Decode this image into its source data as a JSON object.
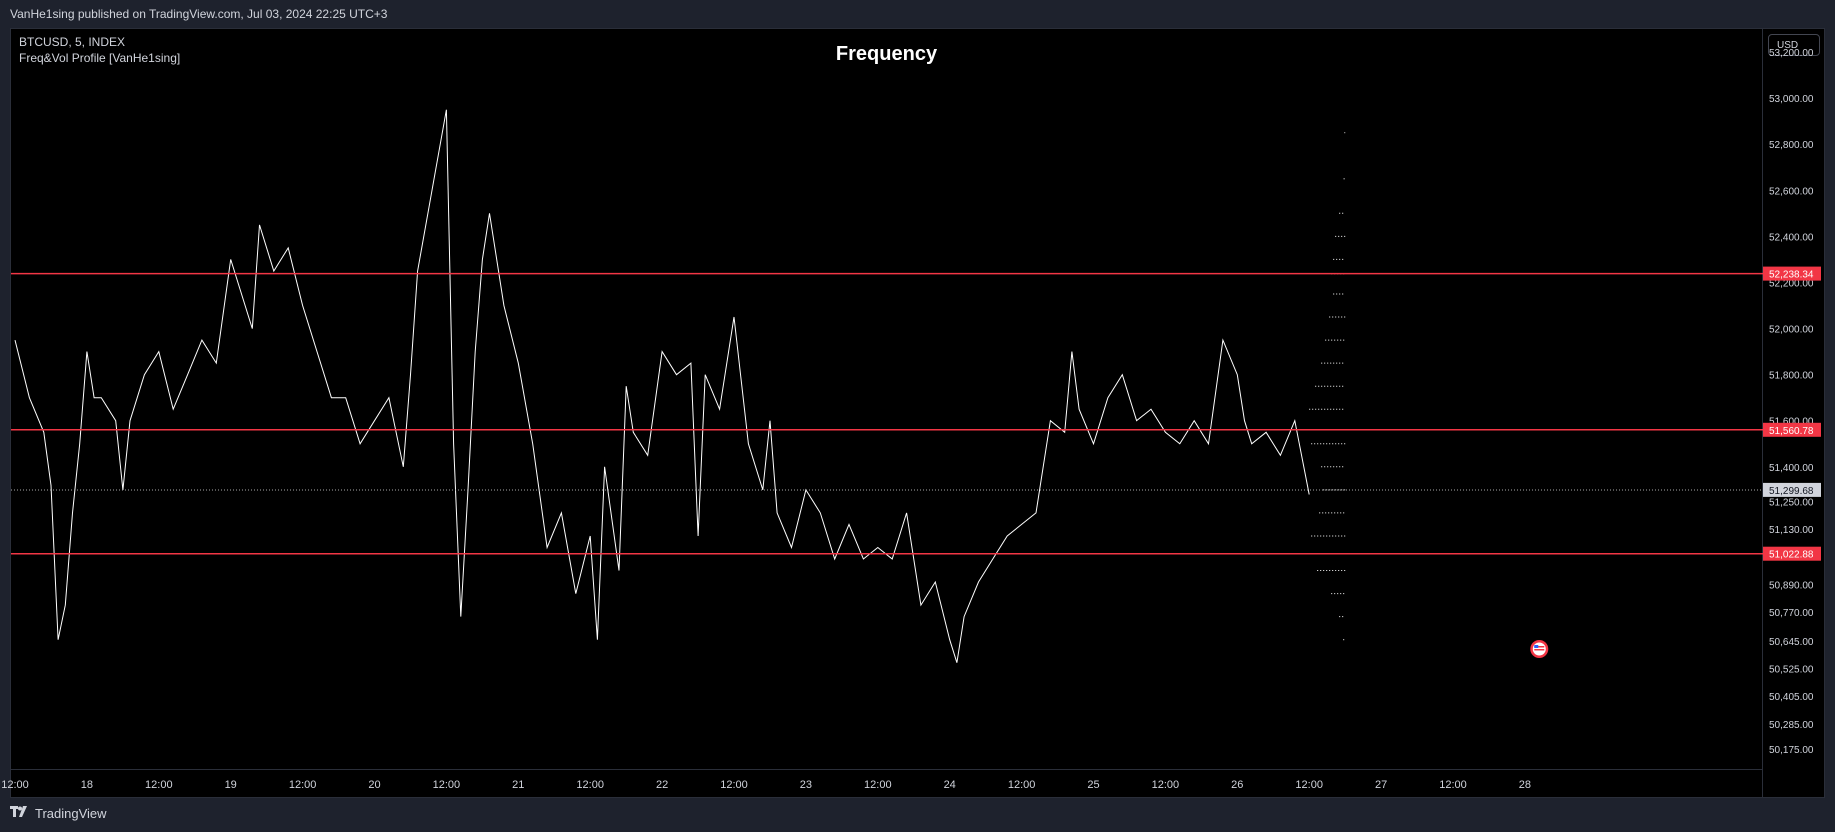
{
  "header": {
    "published": "VanHe1sing published on TradingView.com, Jul 03, 2024 22:25 UTC+3"
  },
  "legend": {
    "symbol": "BTCUSD, 5, INDEX",
    "indicator": "Freq&Vol Profile [VanHe1sing]"
  },
  "price_axis": {
    "currency": "USD"
  },
  "footer": {
    "brand": "TradingView"
  },
  "icons": {
    "event_flag": "us-flag-icon",
    "logo": "tradingview-logo-icon"
  },
  "colors": {
    "background": "#000000",
    "price_line": "#ffffff",
    "level_line": "#f23645",
    "label_text": "#ffffff"
  },
  "chart_data": {
    "type": "line",
    "title": "Frequency",
    "ylim": [
      50080,
      53300
    ],
    "y_ticks": [
      {
        "value": 53200,
        "label": "53,200.00"
      },
      {
        "value": 53000,
        "label": "53,000.00"
      },
      {
        "value": 52800,
        "label": "52,800.00"
      },
      {
        "value": 52600,
        "label": "52,600.00"
      },
      {
        "value": 52400,
        "label": "52,400.00"
      },
      {
        "value": 52200,
        "label": "52,200.00"
      },
      {
        "value": 52000,
        "label": "52,000.00"
      },
      {
        "value": 51800,
        "label": "51,800.00"
      },
      {
        "value": 51600,
        "label": "51,600.00"
      },
      {
        "value": 51400,
        "label": "51,400.00"
      },
      {
        "value": 51250,
        "label": "51,250.00"
      },
      {
        "value": 51130,
        "label": "51,130.00"
      },
      {
        "value": 50890,
        "label": "50,890.00"
      },
      {
        "value": 50770,
        "label": "50,770.00"
      },
      {
        "value": 50645,
        "label": "50,645.00"
      },
      {
        "value": 50525,
        "label": "50,525.00"
      },
      {
        "value": 50405,
        "label": "50,405.00"
      },
      {
        "value": 50285,
        "label": "50,285.00"
      },
      {
        "value": 50175,
        "label": "50,175.00"
      }
    ],
    "x_ticks": [
      "12:00",
      "18",
      "12:00",
      "19",
      "12:00",
      "20",
      "12:00",
      "21",
      "12:00",
      "22",
      "12:00",
      "23",
      "12:00",
      "24",
      "12:00",
      "25",
      "12:00",
      "26",
      "12:00",
      "27",
      "12:00",
      "28"
    ],
    "x_tick_days": [
      0,
      0.5,
      1,
      1.5,
      2,
      2.5,
      3,
      3.5,
      4,
      4.5,
      5,
      5.5,
      6,
      6.5,
      7,
      7.5,
      8,
      8.5,
      9,
      9.5,
      10,
      10.5
    ],
    "xlim": [
      0,
      12.12
    ],
    "levels": [
      {
        "value": 52238.34,
        "label": "52,238.34"
      },
      {
        "value": 51560.78,
        "label": "51,560.78"
      },
      {
        "value": 51022.88,
        "label": "51,022.88"
      }
    ],
    "last_price": {
      "value": 51299.68,
      "label": "51,299.68"
    },
    "series": [
      {
        "x": [
          0,
          0.1,
          0.2,
          0.25,
          0.3,
          0.35,
          0.4,
          0.45,
          0.5,
          0.55,
          0.6,
          0.7,
          0.75,
          0.8,
          0.9,
          1,
          1.1,
          1.2,
          1.3,
          1.4,
          1.5,
          1.6,
          1.65,
          1.7,
          1.8,
          1.9,
          2,
          2.1,
          2.2,
          2.3,
          2.4,
          2.5,
          2.6,
          2.7,
          2.75,
          2.8,
          2.9,
          3,
          3.05,
          3.1,
          3.15,
          3.2,
          3.25,
          3.3,
          3.4,
          3.5,
          3.6,
          3.7,
          3.8,
          3.9,
          4,
          4.05,
          4.1,
          4.2,
          4.25,
          4.3,
          4.4,
          4.5,
          4.6,
          4.7,
          4.75,
          4.8,
          4.9,
          5,
          5.1,
          5.2,
          5.25,
          5.3,
          5.4,
          5.5,
          5.6,
          5.7,
          5.8,
          5.9,
          6,
          6.1,
          6.2,
          6.3,
          6.4,
          6.5,
          6.55,
          6.6,
          6.7,
          6.8,
          6.9,
          7,
          7.1,
          7.2,
          7.3,
          7.35,
          7.4,
          7.5,
          7.6,
          7.7,
          7.8,
          7.9,
          8,
          8.1,
          8.2,
          8.3,
          8.4,
          8.5,
          8.55,
          8.6,
          8.7,
          8.8,
          8.9,
          9.0
        ],
        "y": [
          51950,
          51700,
          51550,
          51320,
          50650,
          50800,
          51200,
          51500,
          51900,
          51700,
          51700,
          51600,
          51300,
          51600,
          51800,
          51900,
          51650,
          51800,
          51950,
          51850,
          52300,
          52100,
          52000,
          52450,
          52250,
          52350,
          52100,
          51900,
          51700,
          51700,
          51500,
          51600,
          51700,
          51400,
          51800,
          52250,
          52600,
          52950,
          51500,
          50750,
          51300,
          51900,
          52300,
          52500,
          52100,
          51850,
          51500,
          51050,
          51200,
          50850,
          51100,
          50650,
          51400,
          50950,
          51750,
          51550,
          51450,
          51900,
          51800,
          51850,
          51100,
          51800,
          51650,
          52050,
          51500,
          51300,
          51600,
          51200,
          51050,
          51300,
          51200,
          51000,
          51150,
          51000,
          51050,
          51000,
          51200,
          50800,
          50900,
          50650,
          50550,
          50750,
          50900,
          51000,
          51100,
          51150,
          51200,
          51600,
          51550,
          51900,
          51650,
          51500,
          51700,
          51800,
          51600,
          51650,
          51550,
          51500,
          51600,
          51500,
          51950,
          51800,
          51600,
          51500,
          51550,
          51450,
          51600,
          51280
        ]
      }
    ],
    "profile": {
      "x_center": 9.25,
      "levels": [
        52850,
        52650,
        52500,
        52400,
        52300,
        52238,
        52150,
        52050,
        51950,
        51850,
        51750,
        51650,
        51560,
        51500,
        51400,
        51300,
        51200,
        51100,
        51022,
        50950,
        50850,
        50750,
        50650
      ],
      "frequency": [
        0.02,
        0.04,
        0.15,
        0.25,
        0.3,
        0.35,
        0.3,
        0.4,
        0.5,
        0.6,
        0.75,
        0.9,
        1.0,
        0.85,
        0.6,
        0.55,
        0.65,
        0.85,
        0.9,
        0.7,
        0.35,
        0.15,
        0.05
      ]
    }
  }
}
